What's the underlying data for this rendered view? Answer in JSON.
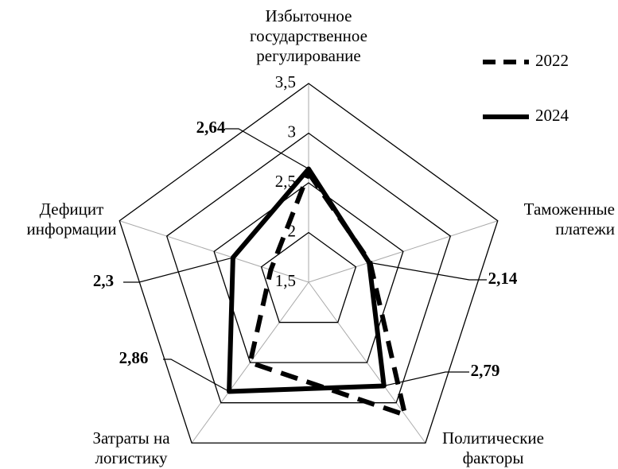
{
  "chart_data": {
    "type": "radar",
    "categories": [
      [
        "Избыточное",
        "государственное",
        "регулирование"
      ],
      [
        "Таможенные",
        "платежи"
      ],
      [
        "Политические",
        "факторы"
      ],
      [
        "Затраты на",
        "логистику"
      ],
      [
        "Дефицит",
        "информации"
      ]
    ],
    "series": [
      {
        "name": "2022",
        "color": "#000000",
        "dash": true,
        "values": [
          2.6,
          2.15,
          3.15,
          2.5,
          1.9
        ]
      },
      {
        "name": "2024",
        "color": "#000000",
        "dash": false,
        "values": [
          2.64,
          2.14,
          2.79,
          2.86,
          2.3
        ],
        "value_labels": [
          "2,64",
          "2,14",
          "2,79",
          "2,86",
          "2,3"
        ]
      }
    ],
    "ylim": [
      1.5,
      3.5
    ],
    "yticks": [
      {
        "value": 1.5,
        "label": "1,5"
      },
      2,
      {
        "value": 2.5,
        "label": "2,5"
      },
      3,
      {
        "value": 3.5,
        "label": "3,5"
      }
    ],
    "legend": "top-right"
  }
}
